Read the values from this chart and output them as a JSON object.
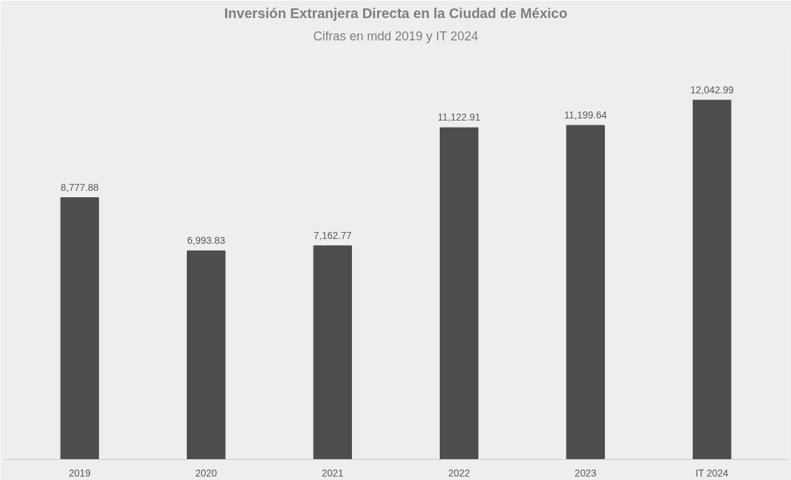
{
  "chart_data": {
    "type": "bar",
    "title": "Inversión Extranjera Directa en la Ciudad de México",
    "subtitle": "Cifras en mdd 2019 y IT 2024",
    "categories": [
      "2019",
      "2020",
      "2021",
      "2022",
      "2023",
      "IT 2024"
    ],
    "values": [
      8777.88,
      6993.83,
      7162.77,
      11122.91,
      11199.64,
      12042.99
    ],
    "value_labels": [
      "8,777.88",
      "6,993.83",
      "7,162.77",
      "11,122.91",
      "11,199.64",
      "12,042.99"
    ],
    "color": "#4d4d4d"
  }
}
